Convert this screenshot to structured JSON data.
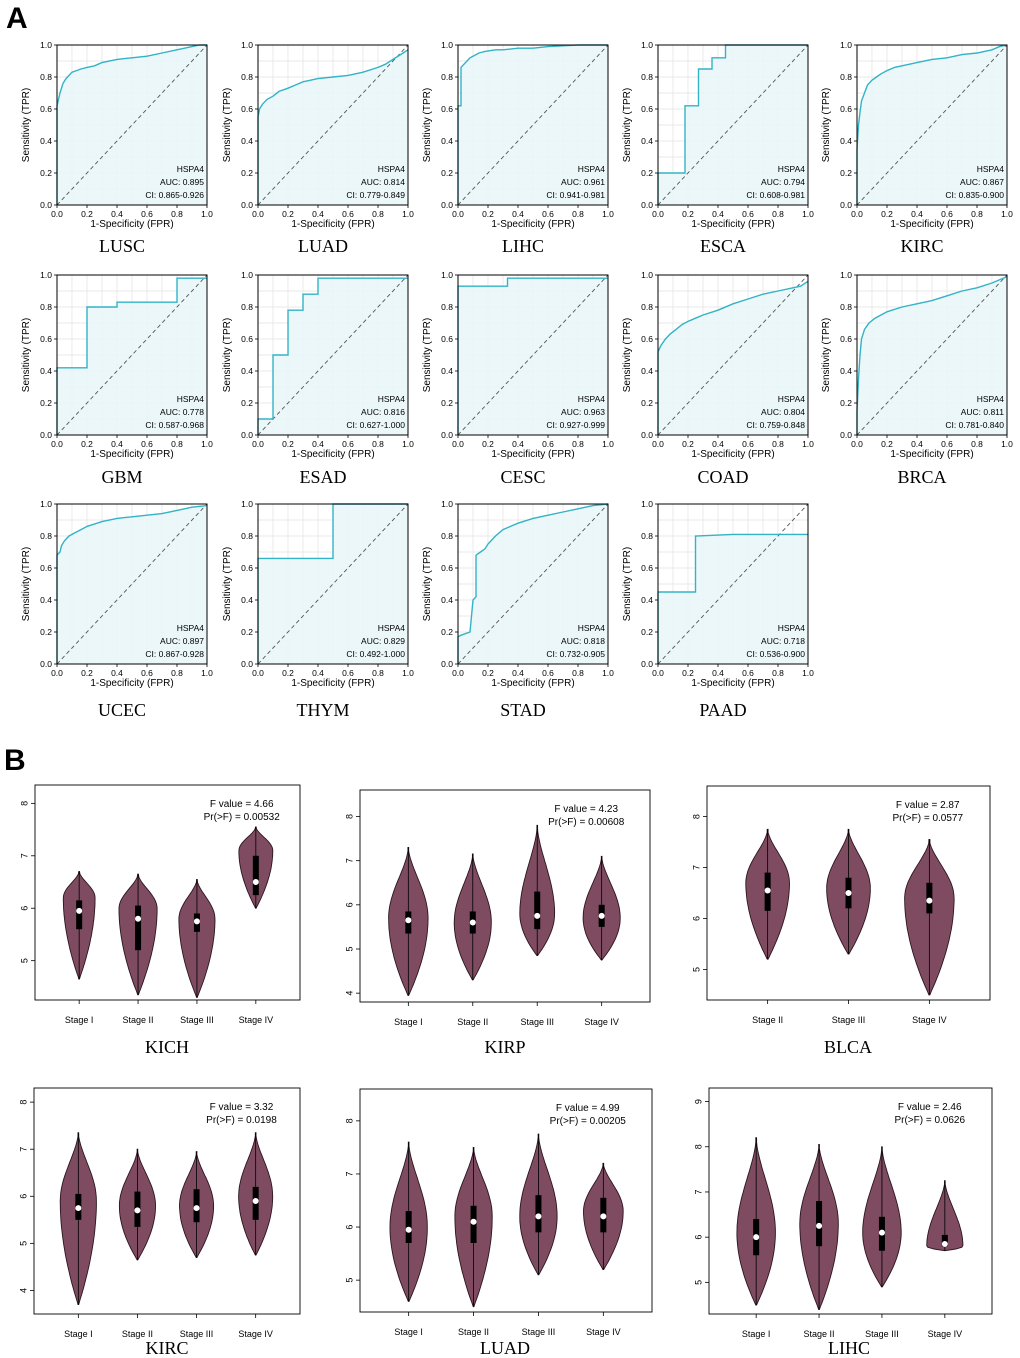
{
  "panel_labels": {
    "a": "A",
    "b": "B"
  },
  "roc_common": {
    "gene": "HSPA4",
    "xlabel": "1-Specificity (FPR)",
    "ylabel": "Sensitivity (TPR)",
    "ticks": [
      "0.0",
      "0.2",
      "0.4",
      "0.6",
      "0.8",
      "1.0"
    ],
    "line_color": "#33B3C6",
    "fill_color": "#E8F6F8"
  },
  "violin_common": {
    "fill_color": "#7E4B60",
    "f_prefix": "F value = ",
    "p_prefix": "Pr(>F) = "
  },
  "chart_data": [
    {
      "type": "line",
      "kind": "roc",
      "cancer": "LUSC",
      "auc": "AUC: 0.895",
      "ci": "CI: 0.865-0.926",
      "x": [
        0,
        0,
        0.01,
        0.02,
        0.03,
        0.04,
        0.06,
        0.08,
        0.1,
        0.13,
        0.16,
        0.2,
        0.25,
        0.3,
        0.4,
        0.5,
        0.6,
        0.7,
        0.8,
        0.9,
        0.95,
        1
      ],
      "y": [
        0,
        0.62,
        0.66,
        0.7,
        0.73,
        0.76,
        0.79,
        0.81,
        0.83,
        0.84,
        0.85,
        0.86,
        0.87,
        0.89,
        0.91,
        0.92,
        0.93,
        0.95,
        0.97,
        0.99,
        1,
        1
      ]
    },
    {
      "type": "line",
      "kind": "roc",
      "cancer": "LUAD",
      "auc": "AUC: 0.814",
      "ci": "CI: 0.779-0.849",
      "x": [
        0,
        0,
        0.01,
        0.03,
        0.06,
        0.1,
        0.14,
        0.2,
        0.25,
        0.3,
        0.4,
        0.5,
        0.6,
        0.7,
        0.8,
        0.85,
        0.9,
        0.95,
        1
      ],
      "y": [
        0,
        0.55,
        0.6,
        0.63,
        0.66,
        0.68,
        0.71,
        0.73,
        0.75,
        0.77,
        0.79,
        0.8,
        0.81,
        0.83,
        0.86,
        0.88,
        0.91,
        0.94,
        0.97
      ]
    },
    {
      "type": "line",
      "kind": "roc",
      "cancer": "LIHC",
      "auc": "AUC: 0.961",
      "ci": "CI: 0.941-0.981",
      "x": [
        0,
        0,
        0.02,
        0.02,
        0.04,
        0.06,
        0.08,
        0.1,
        0.14,
        0.18,
        0.25,
        0.3,
        0.4,
        0.5,
        0.6,
        0.8,
        1
      ],
      "y": [
        0,
        0.62,
        0.62,
        0.86,
        0.88,
        0.9,
        0.92,
        0.93,
        0.95,
        0.96,
        0.97,
        0.97,
        0.98,
        0.98,
        0.99,
        1,
        1
      ]
    },
    {
      "type": "line",
      "kind": "roc",
      "cancer": "ESCA",
      "auc": "AUC: 0.794",
      "ci": "CI: 0.608-0.981",
      "x": [
        0,
        0,
        0.18,
        0.18,
        0.27,
        0.27,
        0.36,
        0.36,
        0.45,
        0.45,
        1
      ],
      "y": [
        0,
        0.2,
        0.2,
        0.62,
        0.62,
        0.85,
        0.85,
        0.92,
        0.92,
        1,
        1
      ]
    },
    {
      "type": "line",
      "kind": "roc",
      "cancer": "KIRC",
      "auc": "AUC: 0.867",
      "ci": "CI: 0.835-0.900",
      "x": [
        0,
        0,
        0.01,
        0.02,
        0.03,
        0.05,
        0.07,
        0.1,
        0.13,
        0.16,
        0.2,
        0.25,
        0.3,
        0.4,
        0.5,
        0.6,
        0.7,
        0.8,
        0.9,
        0.95,
        1
      ],
      "y": [
        0,
        0.35,
        0.5,
        0.58,
        0.65,
        0.7,
        0.75,
        0.78,
        0.8,
        0.82,
        0.84,
        0.86,
        0.87,
        0.89,
        0.91,
        0.92,
        0.94,
        0.95,
        0.97,
        0.99,
        1
      ]
    },
    {
      "type": "line",
      "kind": "roc",
      "cancer": "GBM",
      "auc": "AUC: 0.778",
      "ci": "CI: 0.587-0.968",
      "x": [
        0,
        0,
        0.2,
        0.2,
        0.4,
        0.4,
        0.8,
        0.8,
        1
      ],
      "y": [
        0,
        0.42,
        0.42,
        0.8,
        0.8,
        0.83,
        0.83,
        0.98,
        0.98
      ]
    },
    {
      "type": "line",
      "kind": "roc",
      "cancer": "ESAD",
      "auc": "AUC: 0.816",
      "ci": "CI: 0.627-1.000",
      "x": [
        0,
        0,
        0.1,
        0.1,
        0.2,
        0.2,
        0.3,
        0.3,
        0.4,
        0.4,
        0.9,
        1
      ],
      "y": [
        0,
        0.1,
        0.1,
        0.5,
        0.5,
        0.78,
        0.78,
        0.88,
        0.88,
        0.98,
        0.98,
        0.98
      ]
    },
    {
      "type": "line",
      "kind": "roc",
      "cancer": "CESC",
      "auc": "AUC: 0.963",
      "ci": "CI: 0.927-0.999",
      "x": [
        0,
        0,
        0.33,
        0.33,
        1
      ],
      "y": [
        0,
        0.93,
        0.93,
        0.98,
        0.98
      ]
    },
    {
      "type": "line",
      "kind": "roc",
      "cancer": "COAD",
      "auc": "AUC: 0.804",
      "ci": "CI: 0.759-0.848",
      "x": [
        0,
        0,
        0.02,
        0.05,
        0.08,
        0.12,
        0.16,
        0.2,
        0.25,
        0.3,
        0.4,
        0.5,
        0.6,
        0.7,
        0.8,
        0.9,
        0.95,
        1
      ],
      "y": [
        0,
        0.52,
        0.56,
        0.6,
        0.63,
        0.66,
        0.69,
        0.71,
        0.73,
        0.75,
        0.78,
        0.82,
        0.85,
        0.88,
        0.9,
        0.92,
        0.93,
        0.96
      ]
    },
    {
      "type": "line",
      "kind": "roc",
      "cancer": "BRCA",
      "auc": "AUC: 0.811",
      "ci": "CI: 0.781-0.840",
      "x": [
        0,
        0,
        0.01,
        0.02,
        0.03,
        0.05,
        0.08,
        0.12,
        0.16,
        0.2,
        0.3,
        0.4,
        0.5,
        0.6,
        0.7,
        0.8,
        0.9,
        1
      ],
      "y": [
        0,
        0.15,
        0.35,
        0.5,
        0.6,
        0.66,
        0.7,
        0.73,
        0.75,
        0.77,
        0.8,
        0.82,
        0.84,
        0.87,
        0.9,
        0.92,
        0.95,
        0.99
      ]
    },
    {
      "type": "line",
      "kind": "roc",
      "cancer": "UCEC",
      "auc": "AUC: 0.897",
      "ci": "CI: 0.867-0.928",
      "x": [
        0,
        0,
        0.02,
        0.03,
        0.05,
        0.08,
        0.12,
        0.16,
        0.2,
        0.3,
        0.4,
        0.5,
        0.6,
        0.7,
        0.8,
        0.9,
        1
      ],
      "y": [
        0,
        0.68,
        0.7,
        0.74,
        0.77,
        0.8,
        0.82,
        0.84,
        0.86,
        0.89,
        0.91,
        0.92,
        0.93,
        0.94,
        0.96,
        0.98,
        0.99
      ]
    },
    {
      "type": "line",
      "kind": "roc",
      "cancer": "THYM",
      "auc": "AUC: 0.829",
      "ci": "CI: 0.492-1.000",
      "x": [
        0,
        0,
        0.5,
        0.5,
        1
      ],
      "y": [
        0,
        0.66,
        0.66,
        1,
        1
      ]
    },
    {
      "type": "line",
      "kind": "roc",
      "cancer": "STAD",
      "auc": "AUC: 0.818",
      "ci": "CI: 0.732-0.905",
      "x": [
        0,
        0,
        0.02,
        0.08,
        0.1,
        0.12,
        0.12,
        0.15,
        0.18,
        0.2,
        0.25,
        0.3,
        0.35,
        0.4,
        0.5,
        0.6,
        0.7,
        0.8,
        0.9,
        1
      ],
      "y": [
        0,
        0.17,
        0.18,
        0.2,
        0.4,
        0.42,
        0.68,
        0.7,
        0.72,
        0.75,
        0.8,
        0.84,
        0.86,
        0.88,
        0.91,
        0.93,
        0.95,
        0.97,
        0.99,
        1
      ]
    },
    {
      "type": "line",
      "kind": "roc",
      "cancer": "PAAD",
      "auc": "AUC: 0.718",
      "ci": "CI: 0.536-0.900",
      "x": [
        0,
        0,
        0.25,
        0.25,
        0.5,
        1
      ],
      "y": [
        0,
        0.45,
        0.45,
        0.8,
        0.81,
        0.81
      ]
    },
    {
      "type": "violin",
      "cancer": "KICH",
      "f_value": "4.66",
      "p_value": "0.00532",
      "ylim": [
        4.25,
        8.35
      ],
      "yticks": [
        5,
        6,
        7,
        8
      ],
      "groups": [
        {
          "stage": "Stage I",
          "min": 4.65,
          "max": 6.7,
          "q1": 5.6,
          "median": 5.95,
          "q3": 6.15,
          "peak": 6.2,
          "wmax": 0.75
        },
        {
          "stage": "Stage II",
          "min": 4.35,
          "max": 6.65,
          "q1": 5.2,
          "median": 5.8,
          "q3": 6.05,
          "peak": 6.0,
          "wmax": 0.9
        },
        {
          "stage": "Stage III",
          "min": 4.3,
          "max": 6.55,
          "q1": 5.55,
          "median": 5.75,
          "q3": 5.9,
          "peak": 5.8,
          "wmax": 0.85
        },
        {
          "stage": "Stage IV",
          "min": 6.0,
          "max": 7.55,
          "q1": 6.25,
          "median": 6.5,
          "q3": 7.0,
          "peak": 7.1,
          "wmax": 0.8
        }
      ]
    },
    {
      "type": "violin",
      "cancer": "KIRP",
      "f_value": "4.23",
      "p_value": "0.00608",
      "ylim": [
        3.8,
        8.6
      ],
      "yticks": [
        4,
        5,
        6,
        7,
        8
      ],
      "groups": [
        {
          "stage": "Stage I",
          "min": 3.95,
          "max": 7.3,
          "q1": 5.35,
          "median": 5.65,
          "q3": 5.85,
          "peak": 5.7,
          "wmax": 0.85
        },
        {
          "stage": "Stage II",
          "min": 4.3,
          "max": 7.15,
          "q1": 5.35,
          "median": 5.6,
          "q3": 5.85,
          "peak": 5.6,
          "wmax": 0.8
        },
        {
          "stage": "Stage III",
          "min": 4.85,
          "max": 7.8,
          "q1": 5.45,
          "median": 5.75,
          "q3": 6.3,
          "peak": 5.8,
          "wmax": 0.75
        },
        {
          "stage": "Stage IV",
          "min": 4.75,
          "max": 7.1,
          "q1": 5.5,
          "median": 5.75,
          "q3": 6.0,
          "peak": 5.7,
          "wmax": 0.8
        }
      ]
    },
    {
      "type": "violin",
      "cancer": "BLCA",
      "f_value": "2.87",
      "p_value": "0.0577",
      "ylim": [
        4.4,
        8.6
      ],
      "yticks": [
        5,
        6,
        7,
        8
      ],
      "groups": [
        {
          "stage": "Stage II",
          "min": 5.2,
          "max": 7.75,
          "q1": 6.15,
          "median": 6.55,
          "q3": 6.9,
          "peak": 6.7,
          "wmax": 0.75
        },
        {
          "stage": "Stage III",
          "min": 5.3,
          "max": 7.75,
          "q1": 6.2,
          "median": 6.5,
          "q3": 6.8,
          "peak": 6.6,
          "wmax": 0.75
        },
        {
          "stage": "Stage IV",
          "min": 4.5,
          "max": 7.55,
          "q1": 6.1,
          "median": 6.35,
          "q3": 6.7,
          "peak": 6.4,
          "wmax": 0.85
        }
      ]
    },
    {
      "type": "violin",
      "cancer": "KIRC",
      "f_value": "3.32",
      "p_value": "0.0198",
      "ylim": [
        3.5,
        8.3
      ],
      "yticks": [
        4,
        5,
        6,
        7,
        8
      ],
      "groups": [
        {
          "stage": "Stage I",
          "min": 3.7,
          "max": 7.35,
          "q1": 5.5,
          "median": 5.75,
          "q3": 6.05,
          "peak": 5.9,
          "wmax": 0.85
        },
        {
          "stage": "Stage II",
          "min": 4.65,
          "max": 7.0,
          "q1": 5.35,
          "median": 5.7,
          "q3": 6.1,
          "peak": 5.8,
          "wmax": 0.85
        },
        {
          "stage": "Stage III",
          "min": 4.7,
          "max": 6.95,
          "q1": 5.45,
          "median": 5.75,
          "q3": 6.15,
          "peak": 5.8,
          "wmax": 0.8
        },
        {
          "stage": "Stage IV",
          "min": 4.75,
          "max": 7.35,
          "q1": 5.5,
          "median": 5.9,
          "q3": 6.2,
          "peak": 6.0,
          "wmax": 0.8
        }
      ]
    },
    {
      "type": "violin",
      "cancer": "LUAD",
      "f_value": "4.99",
      "p_value": "0.00205",
      "ylim": [
        4.4,
        8.6
      ],
      "yticks": [
        5,
        6,
        7,
        8
      ],
      "groups": [
        {
          "stage": "Stage I",
          "min": 4.6,
          "max": 7.6,
          "q1": 5.7,
          "median": 5.95,
          "q3": 6.3,
          "peak": 6.0,
          "wmax": 0.8
        },
        {
          "stage": "Stage II",
          "min": 4.5,
          "max": 7.5,
          "q1": 5.7,
          "median": 6.1,
          "q3": 6.4,
          "peak": 6.2,
          "wmax": 0.8
        },
        {
          "stage": "Stage III",
          "min": 5.1,
          "max": 7.75,
          "q1": 5.9,
          "median": 6.2,
          "q3": 6.6,
          "peak": 6.2,
          "wmax": 0.8
        },
        {
          "stage": "Stage IV",
          "min": 5.2,
          "max": 7.2,
          "q1": 5.9,
          "median": 6.2,
          "q3": 6.55,
          "peak": 6.3,
          "wmax": 0.85
        }
      ]
    },
    {
      "type": "violin",
      "cancer": "LIHC",
      "f_value": "2.46",
      "p_value": "0.0626",
      "ylim": [
        4.3,
        9.3
      ],
      "yticks": [
        5,
        6,
        7,
        8,
        9
      ],
      "groups": [
        {
          "stage": "Stage I",
          "min": 4.5,
          "max": 8.2,
          "q1": 5.6,
          "median": 6.0,
          "q3": 6.4,
          "peak": 6.1,
          "wmax": 0.85
        },
        {
          "stage": "Stage II",
          "min": 4.4,
          "max": 8.05,
          "q1": 5.8,
          "median": 6.25,
          "q3": 6.8,
          "peak": 6.3,
          "wmax": 0.85
        },
        {
          "stage": "Stage III",
          "min": 4.9,
          "max": 8.0,
          "q1": 5.7,
          "median": 6.1,
          "q3": 6.45,
          "peak": 6.1,
          "wmax": 0.85
        },
        {
          "stage": "Stage IV",
          "min": 5.7,
          "max": 7.25,
          "q1": 5.8,
          "median": 5.85,
          "q3": 6.05,
          "peak": 5.8,
          "wmax": 0.8
        }
      ]
    }
  ]
}
